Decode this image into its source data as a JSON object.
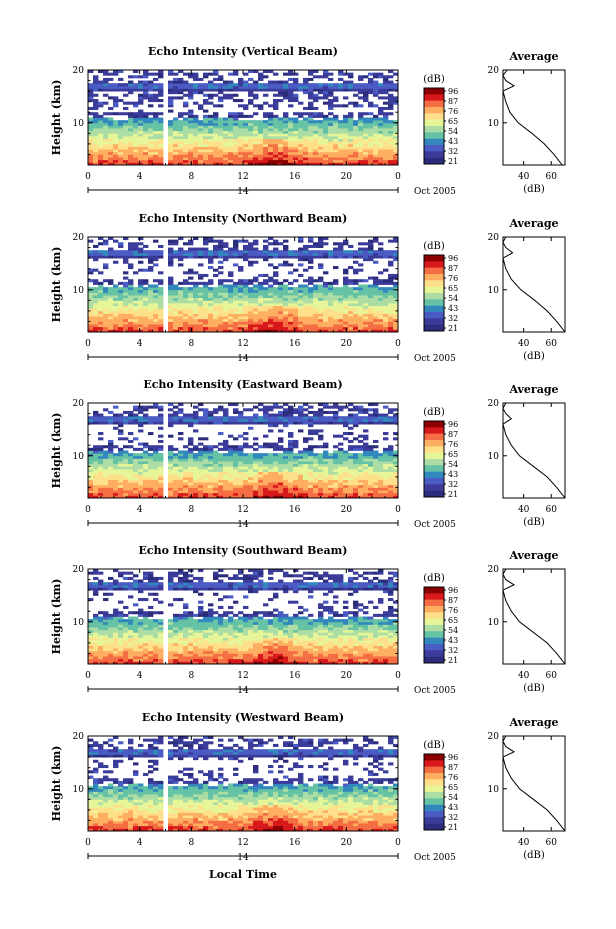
{
  "colors": {
    "axis": "#000000",
    "gap": "#ffffff"
  },
  "colorbar": {
    "unit": "(dB)",
    "ticks": [
      "96",
      "87",
      "76",
      "65",
      "54",
      "43",
      "32",
      "21"
    ],
    "colors": [
      "#8b0000",
      "#d7191c",
      "#f46d43",
      "#fdae61",
      "#fee08b",
      "#e6f598",
      "#abdda4",
      "#66c2a5",
      "#3288bd",
      "#4a5bc4",
      "#3b3b9a",
      "#2b2d7c"
    ]
  },
  "xaxis": {
    "ticks": [
      "0",
      "4",
      "8",
      "12",
      "16",
      "20",
      "0"
    ],
    "date_label": "14",
    "month_label": "Oct 2005",
    "title": "Local Time"
  },
  "yaxis": {
    "title": "Height (km)",
    "ticks": [
      "20",
      "10"
    ]
  },
  "avg": {
    "title": "Average",
    "xlabel": "(dB)",
    "xticks": [
      "40",
      "60"
    ],
    "yticks": [
      "20",
      "10"
    ]
  },
  "panels": [
    {
      "title": "Echo Intensity (Vertical Beam)"
    },
    {
      "title": "Echo Intensity (Northward Beam)"
    },
    {
      "title": "Echo Intensity (Eastward Beam)"
    },
    {
      "title": "Echo Intensity (Southward Beam)"
    },
    {
      "title": "Echo Intensity (Westward Beam)"
    }
  ],
  "chart_data": [
    {
      "type": "heatmap",
      "title": "Echo Intensity (Vertical Beam)",
      "xlabel": "",
      "ylabel": "Height (km)",
      "xlim": [
        0,
        24
      ],
      "ylim": [
        2,
        20
      ],
      "colorbar_label": "(dB)",
      "clim": [
        21,
        96
      ],
      "data_gap_hours": [
        5.8,
        6.2
      ],
      "profile": {
        "title": "Average",
        "xlabel": "(dB)",
        "ylabel": "",
        "height_km": [
          2,
          4,
          6,
          8,
          10,
          12,
          14,
          16,
          17,
          18,
          19,
          20
        ],
        "db": [
          68,
          62,
          55,
          46,
          36,
          30,
          27,
          25,
          33,
          27,
          25,
          28
        ]
      }
    },
    {
      "type": "heatmap",
      "title": "Echo Intensity (Northward Beam)",
      "xlabel": "",
      "ylabel": "Height (km)",
      "xlim": [
        0,
        24
      ],
      "ylim": [
        2,
        20
      ],
      "colorbar_label": "(dB)",
      "clim": [
        21,
        96
      ],
      "data_gap_hours": [
        5.8,
        6.2
      ],
      "profile": {
        "title": "Average",
        "xlabel": "(dB)",
        "ylabel": "",
        "height_km": [
          2,
          4,
          6,
          8,
          10,
          12,
          14,
          16,
          17,
          18,
          19,
          20
        ],
        "db": [
          70,
          64,
          57,
          48,
          38,
          31,
          27,
          25,
          32,
          27,
          25,
          27
        ]
      }
    },
    {
      "type": "heatmap",
      "title": "Echo Intensity (Eastward Beam)",
      "xlabel": "",
      "ylabel": "Height (km)",
      "xlim": [
        0,
        24
      ],
      "ylim": [
        2,
        20
      ],
      "colorbar_label": "(dB)",
      "clim": [
        21,
        96
      ],
      "data_gap_hours": [
        5.8,
        6.2
      ],
      "profile": {
        "title": "Average",
        "xlabel": "(dB)",
        "ylabel": "",
        "height_km": [
          2,
          4,
          6,
          8,
          10,
          12,
          14,
          16,
          17,
          18,
          19,
          20
        ],
        "db": [
          70,
          64,
          57,
          47,
          37,
          31,
          27,
          25,
          31,
          27,
          25,
          27
        ]
      }
    },
    {
      "type": "heatmap",
      "title": "Echo Intensity (Southward Beam)",
      "xlabel": "",
      "ylabel": "Height (km)",
      "xlim": [
        0,
        24
      ],
      "ylim": [
        2,
        20
      ],
      "colorbar_label": "(dB)",
      "clim": [
        21,
        96
      ],
      "data_gap_hours": [
        5.8,
        6.2
      ],
      "profile": {
        "title": "Average",
        "xlabel": "(dB)",
        "ylabel": "",
        "height_km": [
          2,
          4,
          6,
          8,
          10,
          12,
          14,
          16,
          17,
          18,
          19,
          20
        ],
        "db": [
          70,
          64,
          57,
          47,
          37,
          31,
          27,
          25,
          33,
          27,
          25,
          27
        ]
      }
    },
    {
      "type": "heatmap",
      "title": "Echo Intensity (Westward Beam)",
      "xlabel": "Local Time",
      "ylabel": "Height (km)",
      "xlim": [
        0,
        24
      ],
      "ylim": [
        2,
        20
      ],
      "colorbar_label": "(dB)",
      "clim": [
        21,
        96
      ],
      "data_gap_hours": [
        5.8,
        6.2
      ],
      "profile": {
        "title": "Average",
        "xlabel": "(dB)",
        "ylabel": "",
        "height_km": [
          2,
          4,
          6,
          8,
          10,
          12,
          14,
          16,
          17,
          18,
          19,
          20
        ],
        "db": [
          70,
          64,
          57,
          47,
          37,
          31,
          27,
          25,
          33,
          27,
          25,
          27
        ]
      }
    }
  ]
}
